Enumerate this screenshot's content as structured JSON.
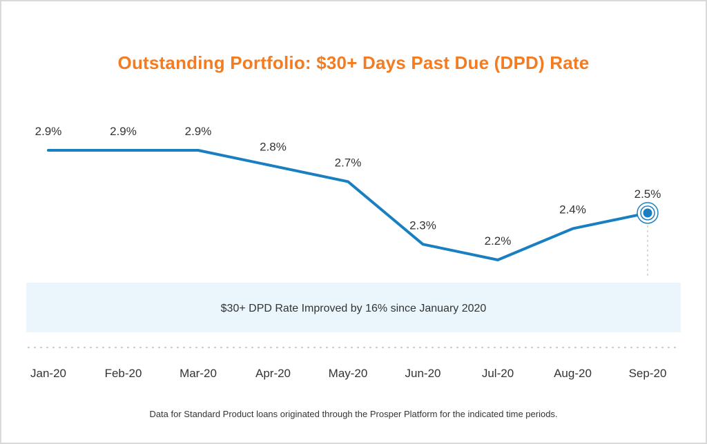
{
  "colors": {
    "title": "#f47b20",
    "line": "#1a7fc1",
    "band": "#eaf6fb",
    "text": "#333333",
    "dotted": "#cccccc"
  },
  "chart_data": {
    "type": "line",
    "title": "Outstanding Portfolio: $30+ Days Past Due (DPD) Rate",
    "categories": [
      "Jan-20",
      "Feb-20",
      "Mar-20",
      "Apr-20",
      "May-20",
      "Jun-20",
      "Jul-20",
      "Aug-20",
      "Sep-20"
    ],
    "series": [
      {
        "name": "$30+ DPD Rate",
        "values": [
          2.9,
          2.9,
          2.9,
          2.8,
          2.7,
          2.3,
          2.2,
          2.4,
          2.5
        ]
      }
    ],
    "data_labels": [
      "2.9%",
      "2.9%",
      "2.9%",
      "2.8%",
      "2.7%",
      "2.3%",
      "2.2%",
      "2.4%",
      "2.5%"
    ],
    "ylim": [
      2.0,
      3.0
    ],
    "xlabel": "",
    "ylabel": "",
    "grid": false,
    "highlight_point": "Sep-20",
    "annotation": "$30+ DPD Rate Improved by 16% since January 2020"
  },
  "footnote": "Data for Standard Product loans originated through the Prosper Platform for the indicated time periods."
}
